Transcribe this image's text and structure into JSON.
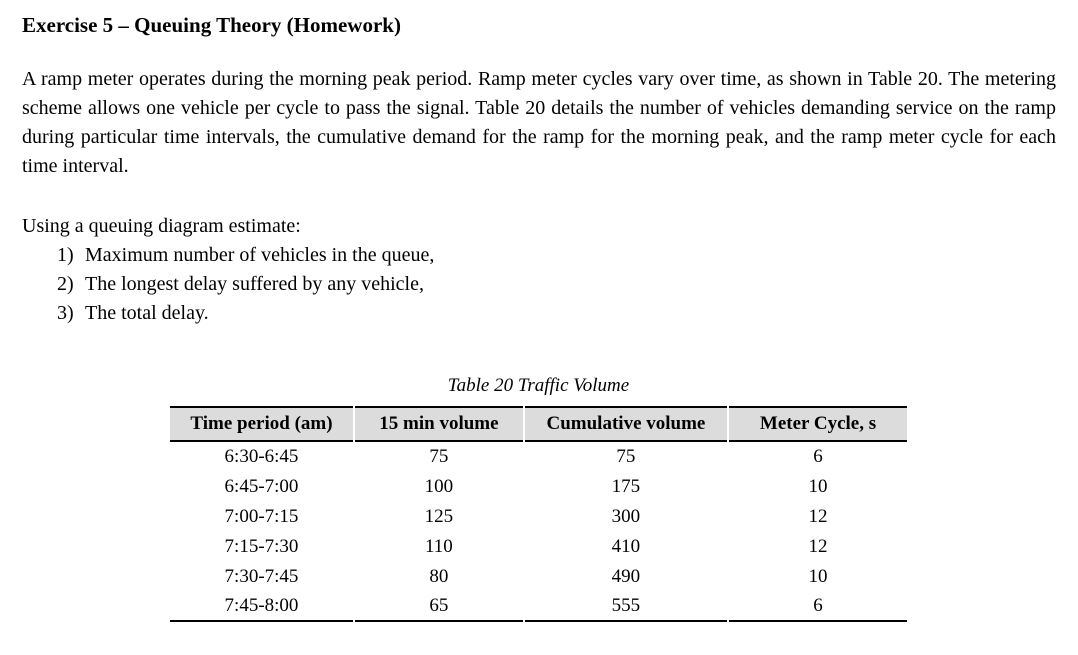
{
  "document": {
    "title": "Exercise 5 – Queuing Theory (Homework)",
    "intro_paragraph": "A ramp meter operates during the morning peak period. Ramp meter cycles vary over time, as shown in Table 20. The metering scheme allows one vehicle per cycle to pass the signal. Table 20 details the number of vehicles demanding service on the ramp during particular time intervals, the cumulative demand for the ramp for the morning peak, and the ramp meter cycle for each time interval.",
    "task_intro": "Using a queuing diagram estimate:",
    "tasks": [
      {
        "number": "1)",
        "text": "Maximum number of vehicles in the queue,"
      },
      {
        "number": "2)",
        "text": "The longest delay suffered by any vehicle,"
      },
      {
        "number": "3)",
        "text": "The total delay."
      }
    ]
  },
  "table": {
    "caption": "Table 20 Traffic Volume",
    "header_bg": "#dcdcdc",
    "rule_color": "#000000",
    "columns": [
      "Time period (am)",
      "15 min volume",
      "Cumulative volume",
      "Meter Cycle, s"
    ],
    "rows": [
      [
        "6:30-6:45",
        "75",
        "75",
        "6"
      ],
      [
        "6:45-7:00",
        "100",
        "175",
        "10"
      ],
      [
        "7:00-7:15",
        "125",
        "300",
        "12"
      ],
      [
        "7:15-7:30",
        "110",
        "410",
        "12"
      ],
      [
        "7:30-7:45",
        "80",
        "490",
        "10"
      ],
      [
        "7:45-8:00",
        "65",
        "555",
        "6"
      ]
    ]
  }
}
